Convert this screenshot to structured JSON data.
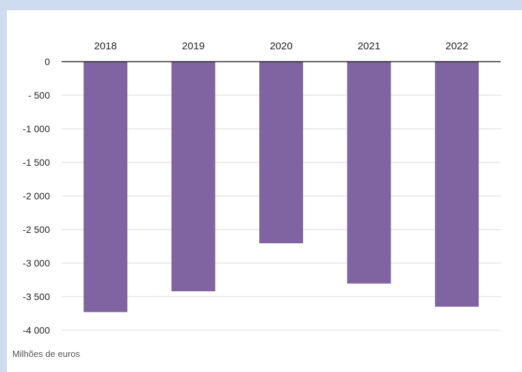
{
  "chart_data": {
    "type": "bar",
    "categories": [
      "2018",
      "2019",
      "2020",
      "2021",
      "2022"
    ],
    "values": [
      -3730,
      -3420,
      -2705,
      -3305,
      -3650
    ],
    "ylim": [
      -4000,
      0
    ],
    "yticks": [
      0,
      -500,
      -1000,
      -1500,
      -2000,
      -2500,
      -3000,
      -3500,
      -4000
    ],
    "ytick_labels": [
      "0",
      "- 500",
      "-1 000",
      "-1 500",
      "-2 000",
      "-2 500",
      "-3 000",
      "-3 500",
      "-4 000"
    ],
    "unit_label": "Milhões de euros",
    "grid": true,
    "category_axis_position": "top",
    "bar_color": "#8064a2",
    "gridline_color": "#d9d9d9",
    "axis_color": "#000000"
  }
}
